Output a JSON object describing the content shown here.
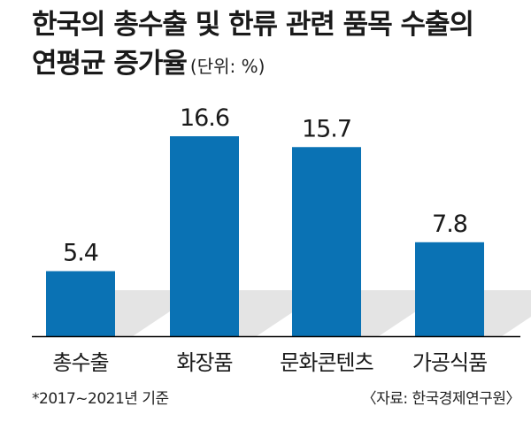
{
  "title_line1": "한국의 총수출 및 한류 관련 품목 수출의",
  "title_line2": "연평균 증가율",
  "unit": "(단위: %)",
  "footnote": "*2017~2021년 기준",
  "source": "〈자료: 한국경제연구원〉",
  "colors": {
    "bar": "#0a72b4",
    "shadow": "#e4e4e4",
    "axis": "#000000"
  },
  "chart_data": {
    "type": "bar",
    "categories": [
      "총수출",
      "화장품",
      "문화콘텐츠",
      "가공식품"
    ],
    "values": [
      5.4,
      16.6,
      15.7,
      7.8
    ],
    "value_labels": [
      "5.4",
      "16.6",
      "15.7",
      "7.8"
    ],
    "ylim": [
      0,
      16.6
    ],
    "grid": false,
    "legend": "none"
  }
}
